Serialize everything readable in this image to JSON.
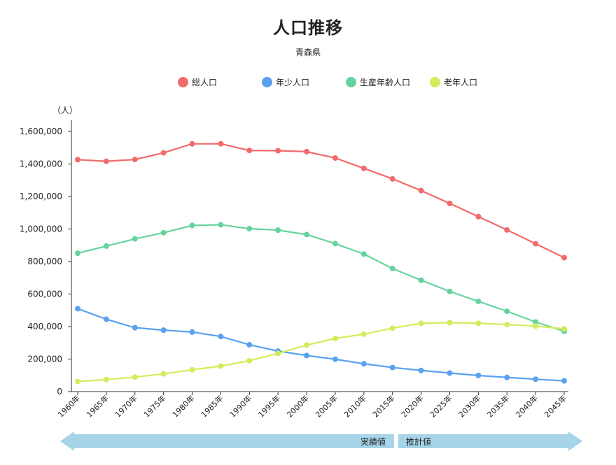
{
  "title": "人口推移",
  "subtitle": "青森県",
  "y_unit": "（人）",
  "banner": {
    "actual_label": "実績値",
    "projected_label": "推計値"
  },
  "colors": {
    "banner": "#a6d4e8"
  },
  "chart_data": {
    "type": "line",
    "x": [
      "1960年",
      "1965年",
      "1970年",
      "1975年",
      "1980年",
      "1985年",
      "1990年",
      "1995年",
      "2000年",
      "2005年",
      "2010年",
      "2015年",
      "2020年",
      "2025年",
      "2030年",
      "2035年",
      "2040年",
      "2045年"
    ],
    "ylim": [
      0,
      1600000
    ],
    "yticks": [
      0,
      200000,
      400000,
      600000,
      800000,
      1000000,
      1200000,
      1400000,
      1600000
    ],
    "ytick_labels": [
      "0",
      "200,000",
      "400,000",
      "600,000",
      "800,000",
      "1,000,000",
      "1,200,000",
      "1,400,000",
      "1,600,000"
    ],
    "legend_position": "top",
    "grid": false,
    "series": [
      {
        "name": "総人口",
        "color": "#f26b6b",
        "values": [
          1426606,
          1416591,
          1427520,
          1468646,
          1523907,
          1524448,
          1482873,
          1481663,
          1475728,
          1436657,
          1373339,
          1308265,
          1236252,
          1157332,
          1076393,
          994325,
          909457,
          823610
        ]
      },
      {
        "name": "年少人口",
        "color": "#5aa1f0",
        "values": [
          510000,
          445000,
          393000,
          378000,
          366000,
          339000,
          288000,
          249000,
          222000,
          199000,
          171000,
          148000,
          130000,
          114000,
          99000,
          87000,
          76000,
          66000
        ]
      },
      {
        "name": "生産年齢人口",
        "color": "#66d39e",
        "values": [
          851000,
          895000,
          939000,
          977000,
          1022000,
          1026000,
          1002000,
          993000,
          966000,
          910000,
          846000,
          757000,
          685000,
          616000,
          555000,
          494000,
          428000,
          371000
        ]
      },
      {
        "name": "老年人口",
        "color": "#d2ec5a",
        "values": [
          62000,
          74000,
          89000,
          109000,
          134000,
          157000,
          190000,
          235000,
          286000,
          327000,
          353000,
          390000,
          420000,
          424000,
          420000,
          412000,
          403000,
          386000
        ]
      }
    ]
  }
}
